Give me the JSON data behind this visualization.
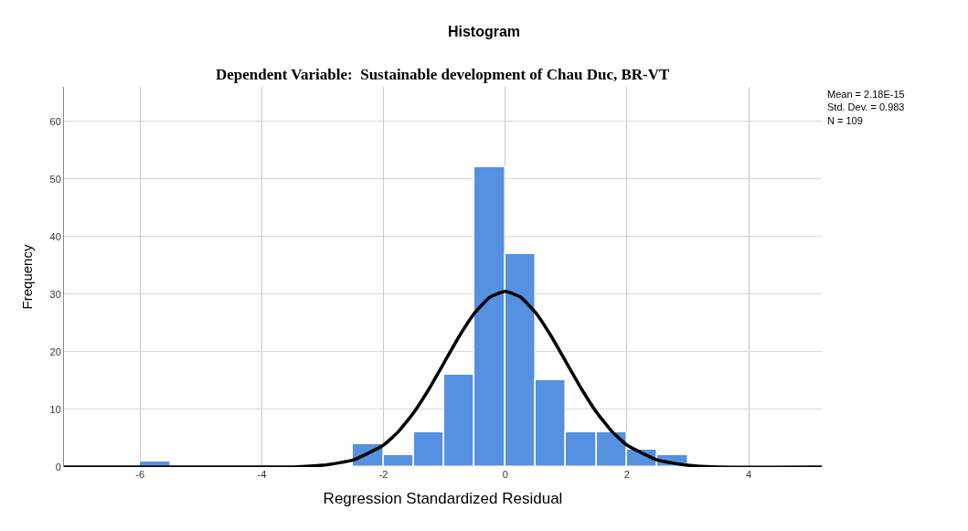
{
  "chart_data": {
    "type": "histogram",
    "title": "Histogram",
    "subtitle": "Dependent Variable:  Sustainable development of Chau Duc, BR-VT",
    "xlabel": "Regression Standardized Residual",
    "ylabel": "Frequency",
    "bins": [
      -6,
      -5.5,
      -5,
      -4.5,
      -4,
      -3.5,
      -3,
      -2.5,
      -2,
      -1.5,
      -1,
      -0.5,
      0,
      0.5,
      1,
      1.5,
      2,
      2.5,
      3
    ],
    "values": [
      1,
      0,
      0,
      0,
      0,
      0,
      0,
      4,
      2,
      6,
      16,
      52,
      37,
      15,
      6,
      6,
      3,
      2
    ],
    "color": "#5591e0",
    "series": [
      {
        "type": "line",
        "color": "#000000",
        "x": [
          -7.25,
          -3.5,
          -3,
          -2.5,
          -2,
          -1.75,
          -1.5,
          -1.25,
          -1,
          -0.75,
          -0.5,
          -0.25,
          0,
          0.25,
          0.5,
          0.75,
          1,
          1.25,
          1.5,
          1.75,
          2,
          2.5,
          3,
          3.5,
          5.2
        ],
        "values": [
          0,
          0,
          0.3,
          1.2,
          3.8,
          6.2,
          9.5,
          13.6,
          18.2,
          22.8,
          26.8,
          29.5,
          30.5,
          29.5,
          26.8,
          22.8,
          18.2,
          13.6,
          9.5,
          6.2,
          3.8,
          1.2,
          0.3,
          0,
          0
        ]
      }
    ],
    "xlim": [
      -7.25,
      5.2
    ],
    "xticks": [
      -6,
      -4,
      -2,
      0,
      2,
      4
    ],
    "ylim": [
      0,
      66
    ],
    "yticks": [
      0,
      10,
      20,
      30,
      40,
      50,
      60
    ],
    "grid": true,
    "annotations": [
      "Mean = 2.18E-15\nStd. Dev. = 0.983\nN = 109"
    ]
  }
}
